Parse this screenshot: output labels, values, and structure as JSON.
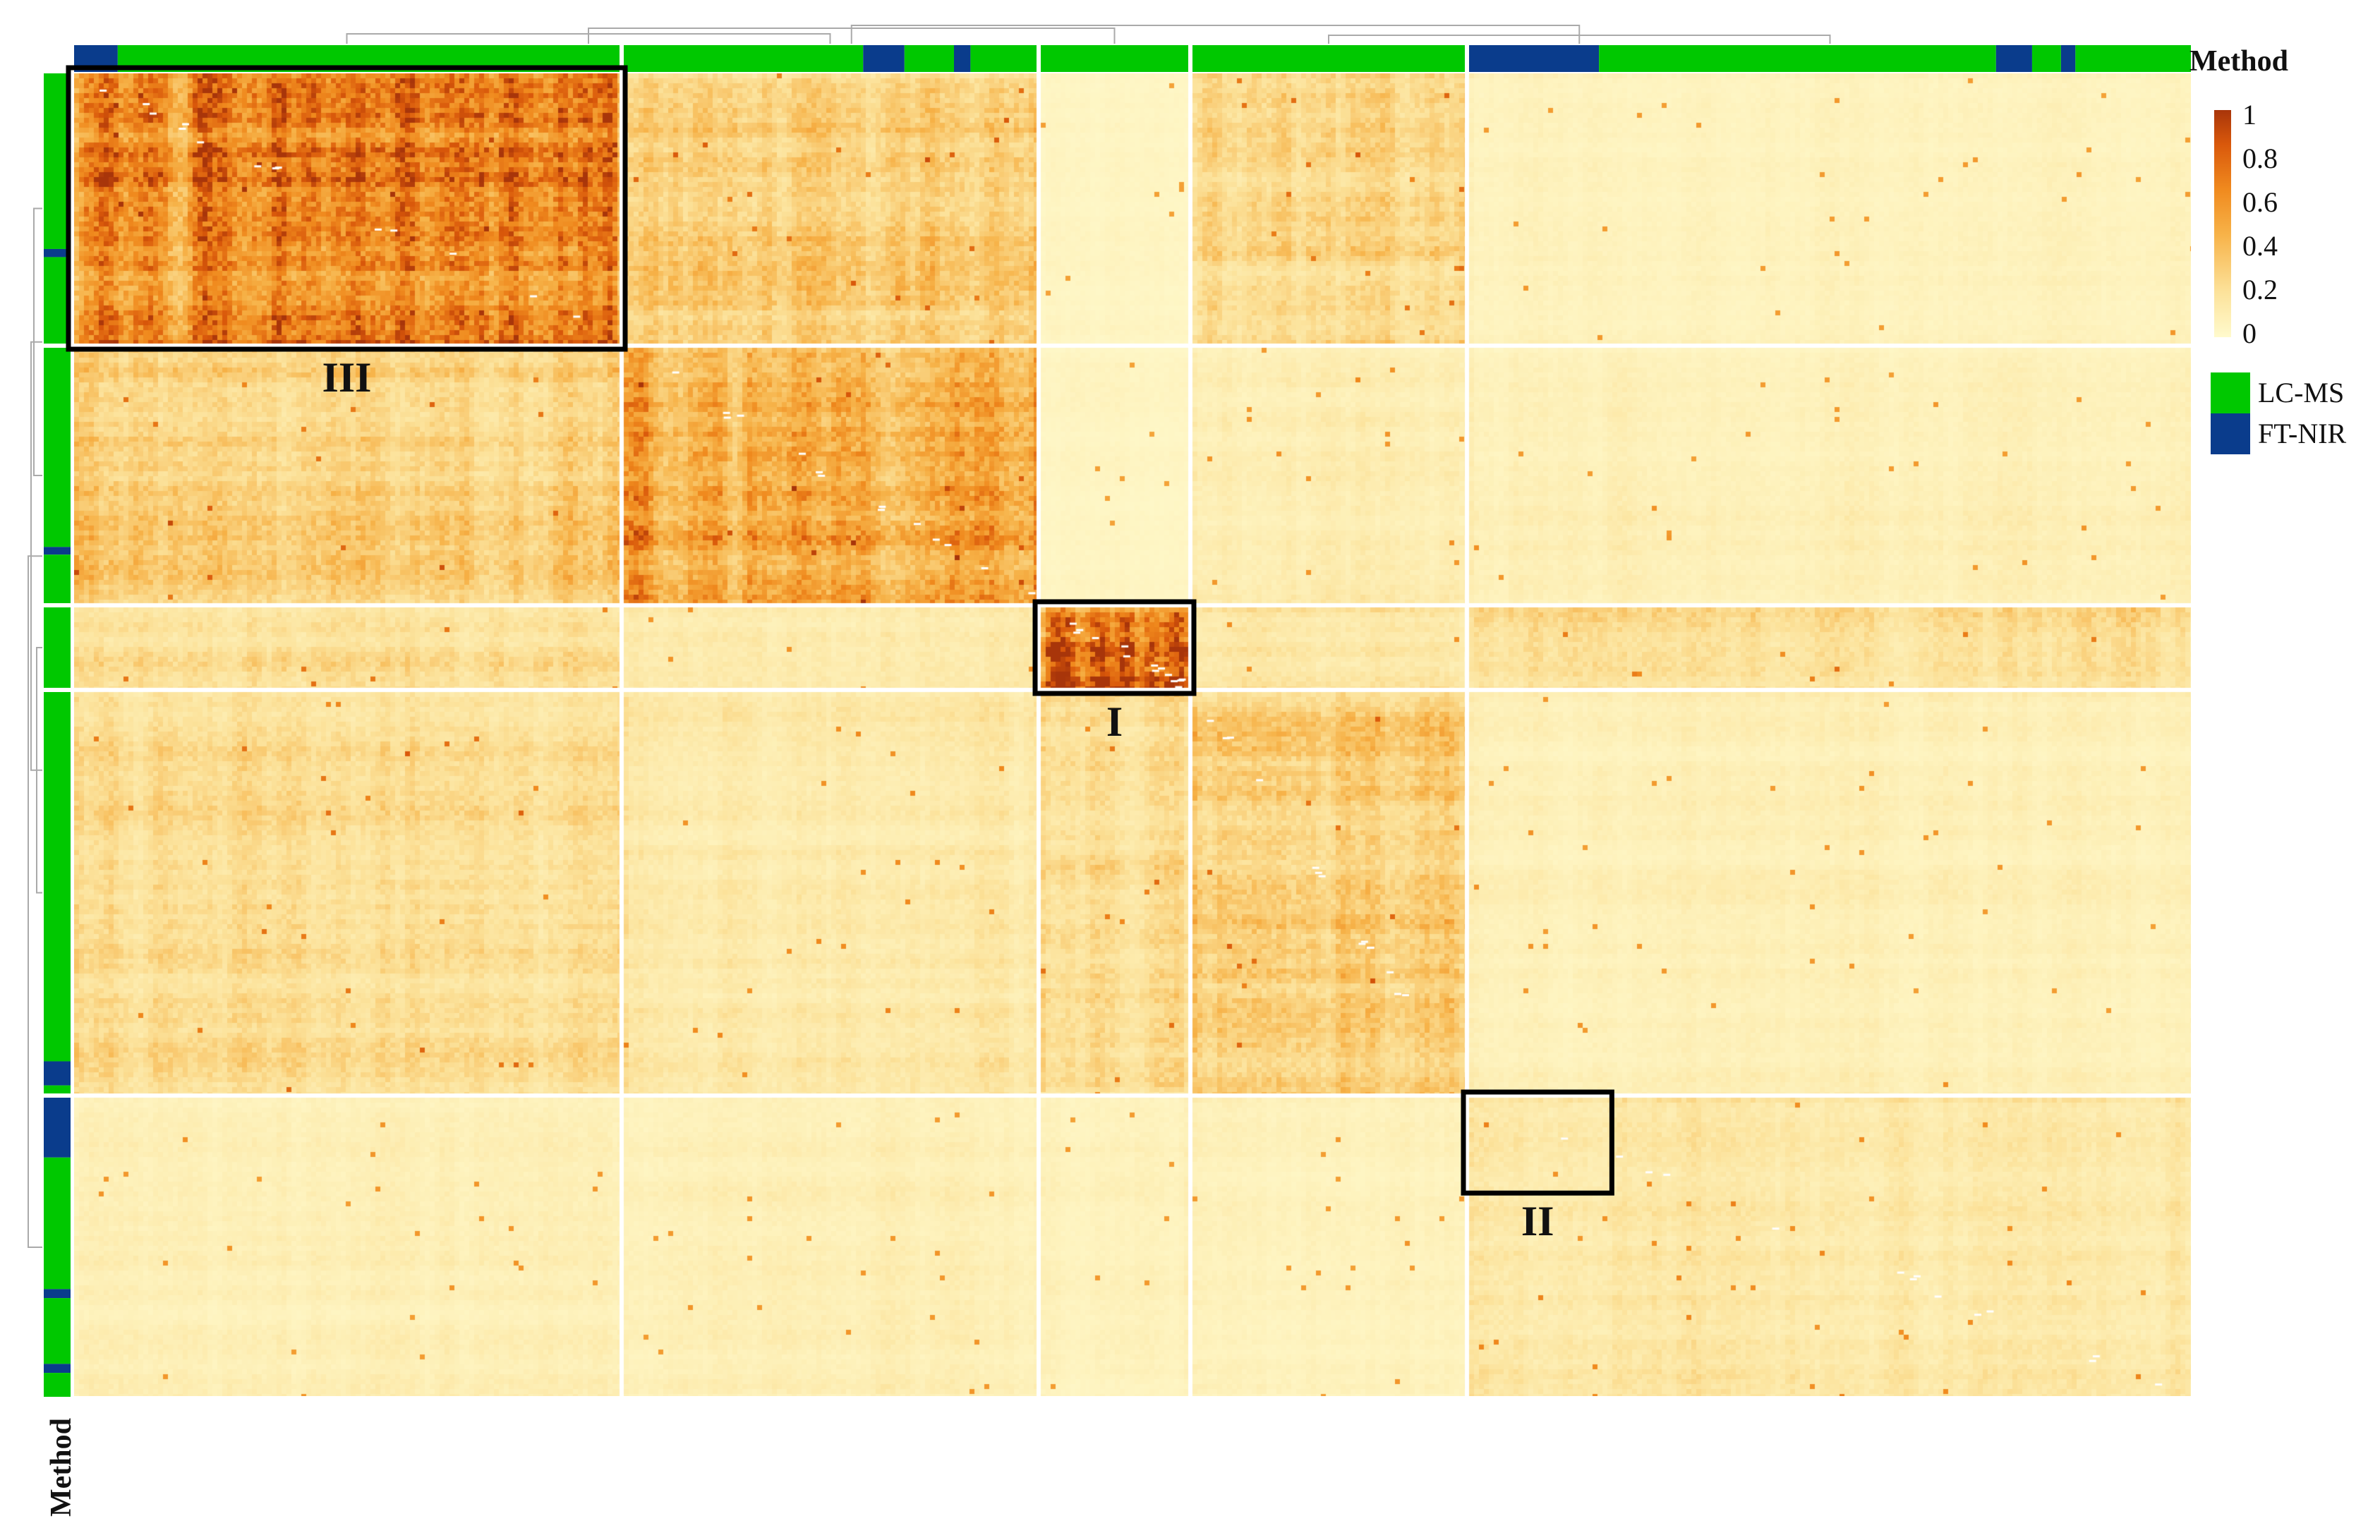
{
  "chart_data": {
    "type": "heatmap",
    "title": "",
    "description_of_structure": "",
    "xlabel": "",
    "ylabel": "",
    "color_scale": {
      "min": 0,
      "max": 1,
      "ticks": [
        "1",
        "0.8",
        "0.6",
        "0.4",
        "0.2",
        "0"
      ],
      "colors": [
        "#FFFACD",
        "#FCE29A",
        "#F7B349",
        "#F08A1E",
        "#D9580B",
        "#A8350A"
      ]
    },
    "annotation": {
      "name": "Method",
      "top_label": "Method",
      "side_label": "Method",
      "legend": [
        {
          "label": "LC-MS",
          "color": "#00C800"
        },
        {
          "label": "FT-NIR",
          "color": "#0A3C8C"
        }
      ]
    },
    "column_clusters": [
      {
        "id": 1,
        "weight": 74,
        "methods": [
          "FT-NIR",
          "LC-MS"
        ]
      },
      {
        "id": 2,
        "weight": 56,
        "methods": [
          "LC-MS",
          "FT-NIR",
          "LC-MS",
          "FT-NIR",
          "LC-MS"
        ]
      },
      {
        "id": 3,
        "weight": 20,
        "methods": [
          "LC-MS"
        ]
      },
      {
        "id": 4,
        "weight": 37,
        "methods": [
          "LC-MS"
        ]
      },
      {
        "id": 5,
        "weight": 98,
        "methods": [
          "FT-NIR",
          "LC-MS",
          "FT-NIR",
          "LC-MS",
          "FT-NIR",
          "LC-MS"
        ]
      }
    ],
    "row_clusters": [
      {
        "id": 1,
        "weight": 37,
        "methods": [
          "LC-MS",
          "FT-NIR",
          "LC-MS"
        ]
      },
      {
        "id": 2,
        "weight": 35,
        "methods": [
          "LC-MS",
          "FT-NIR",
          "LC-MS"
        ]
      },
      {
        "id": 3,
        "weight": 11,
        "methods": [
          "LC-MS"
        ]
      },
      {
        "id": 4,
        "weight": 55,
        "methods": [
          "LC-MS",
          "FT-NIR",
          "LC-MS"
        ]
      },
      {
        "id": 5,
        "weight": 41,
        "methods": [
          "FT-NIR",
          "LC-MS",
          "FT-NIR",
          "LC-MS",
          "FT-NIR",
          "LC-MS"
        ]
      }
    ],
    "block_mean_similarity": [
      [
        0.62,
        0.3,
        0.04,
        0.24,
        0.06
      ],
      [
        0.28,
        0.46,
        0.04,
        0.1,
        0.08
      ],
      [
        0.22,
        0.12,
        0.82,
        0.14,
        0.2
      ],
      [
        0.22,
        0.14,
        0.22,
        0.3,
        0.08
      ],
      [
        0.08,
        0.08,
        0.06,
        0.06,
        0.14
      ]
    ],
    "highlight_boxes": [
      {
        "label": "I",
        "row_cluster": 3,
        "column_cluster": 3
      },
      {
        "label": "II",
        "row_cluster": 5,
        "column_cluster": 5,
        "portion": "top-left FT-NIR sub-block"
      },
      {
        "label": "III",
        "row_cluster": 1,
        "column_cluster": 1
      }
    ]
  }
}
